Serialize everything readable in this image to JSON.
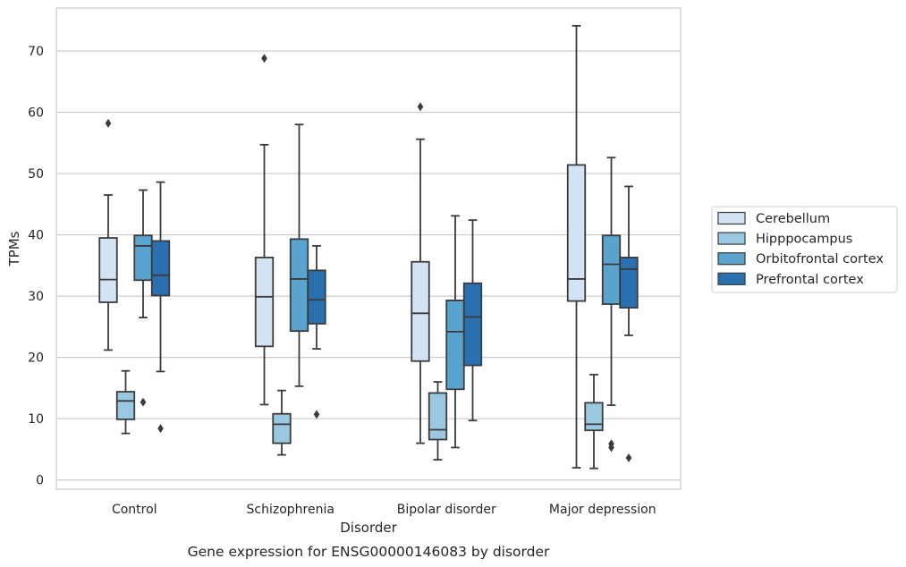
{
  "chart_data": {
    "type": "box",
    "caption": "Gene expression for ENSG00000146083 by disorder",
    "xlabel": "Disorder",
    "ylabel": "TPMs",
    "ylim": [
      -1.5,
      77
    ],
    "yticks": [
      0,
      10,
      20,
      30,
      40,
      50,
      60,
      70
    ],
    "grid": true,
    "legend_position": "right",
    "categories": [
      "Control",
      "Schizophrenia",
      "Bipolar disorder",
      "Major depression"
    ],
    "series": [
      {
        "name": "Cerebellum",
        "color": "#d3e3f3",
        "boxes": [
          {
            "whisker_low": 21.2,
            "q1": 29.0,
            "median": 32.7,
            "q3": 39.5,
            "whisker_high": 46.5,
            "outliers": [
              58.2
            ]
          },
          {
            "whisker_low": 12.3,
            "q1": 21.8,
            "median": 29.9,
            "q3": 36.3,
            "whisker_high": 54.7,
            "outliers": [
              68.8
            ]
          },
          {
            "whisker_low": 6.0,
            "q1": 19.4,
            "median": 27.2,
            "q3": 35.6,
            "whisker_high": 55.6,
            "outliers": [
              60.9
            ]
          },
          {
            "whisker_low": 2.0,
            "q1": 29.2,
            "median": 32.8,
            "q3": 51.4,
            "whisker_high": 74.1,
            "outliers": []
          }
        ]
      },
      {
        "name": "Hipppocampus",
        "color": "#9ac8e0",
        "boxes": [
          {
            "whisker_low": 7.6,
            "q1": 9.9,
            "median": 12.9,
            "q3": 14.4,
            "whisker_high": 17.8,
            "outliers": []
          },
          {
            "whisker_low": 4.1,
            "q1": 6.0,
            "median": 9.1,
            "q3": 10.8,
            "whisker_high": 14.6,
            "outliers": []
          },
          {
            "whisker_low": 3.3,
            "q1": 6.6,
            "median": 8.2,
            "q3": 14.2,
            "whisker_high": 16.0,
            "outliers": []
          },
          {
            "whisker_low": 1.9,
            "q1": 8.1,
            "median": 9.1,
            "q3": 12.6,
            "whisker_high": 17.2,
            "outliers": []
          }
        ]
      },
      {
        "name": "Orbitofrontal cortex",
        "color": "#5ba3cf",
        "boxes": [
          {
            "whisker_low": 26.5,
            "q1": 32.6,
            "median": 38.2,
            "q3": 39.9,
            "whisker_high": 47.3,
            "outliers": [
              12.7
            ]
          },
          {
            "whisker_low": 15.3,
            "q1": 24.3,
            "median": 32.8,
            "q3": 39.3,
            "whisker_high": 58.0,
            "outliers": []
          },
          {
            "whisker_low": 5.3,
            "q1": 14.8,
            "median": 24.2,
            "q3": 29.3,
            "whisker_high": 43.1,
            "outliers": []
          },
          {
            "whisker_low": 12.2,
            "q1": 28.7,
            "median": 35.2,
            "q3": 39.9,
            "whisker_high": 52.6,
            "outliers": [
              5.3,
              5.9
            ]
          }
        ]
      },
      {
        "name": "Prefrontal cortex",
        "color": "#2a6fb0",
        "boxes": [
          {
            "whisker_low": 17.7,
            "q1": 30.1,
            "median": 33.4,
            "q3": 39.0,
            "whisker_high": 48.6,
            "outliers": [
              8.4
            ]
          },
          {
            "whisker_low": 21.4,
            "q1": 25.5,
            "median": 29.4,
            "q3": 34.2,
            "whisker_high": 38.2,
            "outliers": [
              10.7
            ]
          },
          {
            "whisker_low": 9.7,
            "q1": 18.7,
            "median": 26.6,
            "q3": 32.1,
            "whisker_high": 42.4,
            "outliers": []
          },
          {
            "whisker_low": 23.6,
            "q1": 28.1,
            "median": 34.4,
            "q3": 36.3,
            "whisker_high": 47.9,
            "outliers": [
              3.6
            ]
          }
        ]
      }
    ]
  }
}
